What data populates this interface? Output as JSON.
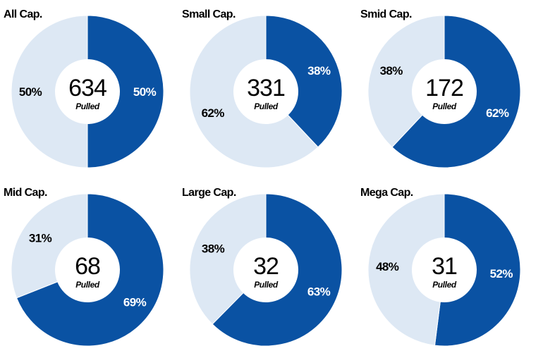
{
  "colors": {
    "dark": "#0a52a3",
    "light": "#dde8f4",
    "hole": "#ffffff"
  },
  "chart_data": [
    {
      "type": "pie",
      "title": "All Cap.",
      "center_value": "634",
      "center_label": "Pulled",
      "slices": [
        {
          "value": 50,
          "label": "50%",
          "color": "dark"
        },
        {
          "value": 50,
          "label": "50%",
          "color": "light"
        }
      ]
    },
    {
      "type": "pie",
      "title": "Small Cap.",
      "center_value": "331",
      "center_label": "Pulled",
      "slices": [
        {
          "value": 38,
          "label": "38%",
          "color": "dark"
        },
        {
          "value": 62,
          "label": "62%",
          "color": "light"
        }
      ]
    },
    {
      "type": "pie",
      "title": "Smid Cap.",
      "center_value": "172",
      "center_label": "Pulled",
      "slices": [
        {
          "value": 62,
          "label": "62%",
          "color": "dark"
        },
        {
          "value": 38,
          "label": "38%",
          "color": "light"
        }
      ]
    },
    {
      "type": "pie",
      "title": "Mid Cap.",
      "center_value": "68",
      "center_label": "Pulled",
      "slices": [
        {
          "value": 69,
          "label": "69%",
          "color": "dark"
        },
        {
          "value": 31,
          "label": "31%",
          "color": "light"
        }
      ]
    },
    {
      "type": "pie",
      "title": "Large Cap.",
      "center_value": "32",
      "center_label": "Pulled",
      "slices": [
        {
          "value": 63,
          "label": "63%",
          "color": "dark"
        },
        {
          "value": 38,
          "label": "38%",
          "color": "light"
        }
      ]
    },
    {
      "type": "pie",
      "title": "Mega Cap.",
      "center_value": "31",
      "center_label": "Pulled",
      "slices": [
        {
          "value": 52,
          "label": "52%",
          "color": "dark"
        },
        {
          "value": 48,
          "label": "48%",
          "color": "light"
        }
      ]
    }
  ]
}
